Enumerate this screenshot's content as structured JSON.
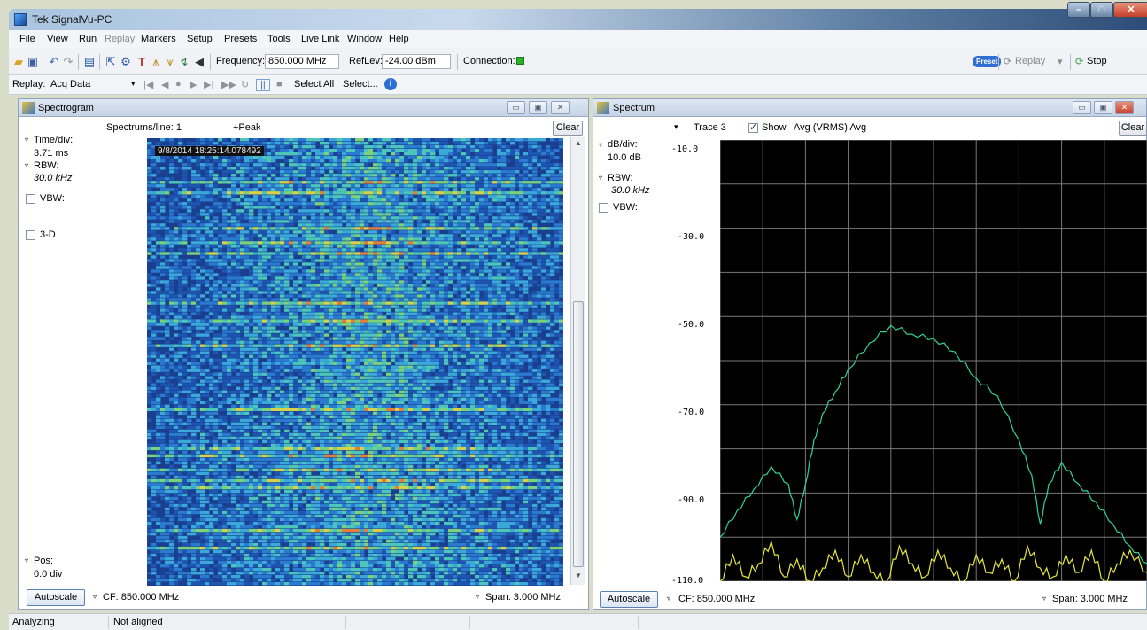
{
  "window": {
    "title": "Tek SignalVu-PC"
  },
  "menu": [
    "File",
    "View",
    "Run",
    "Replay",
    "Markers",
    "Setup",
    "Presets",
    "Tools",
    "Live Link",
    "Window",
    "Help"
  ],
  "toolbar": {
    "frequency_label": "Frequency:",
    "frequency_value": "850.000 MHz",
    "reflev_label": "RefLev:",
    "reflev_value": "-24.00 dBm",
    "connection_label": "Connection:",
    "preset_label": "Preset",
    "replay_label": "Replay",
    "stop_label": "Stop",
    "connection_color": "#2bb02b"
  },
  "replay_bar": {
    "label": "Replay:",
    "source": "Acq Data",
    "select_all": "Select All",
    "select_more": "Select..."
  },
  "spectrogram": {
    "title": "Spectrogram",
    "spectrums_per_line": "Spectrums/line: 1",
    "detection": "+Peak",
    "clear": "Clear",
    "time_div_label": "Time/div:",
    "time_div_value": "3.71 ms",
    "rbw_label": "RBW:",
    "rbw_value": "30.0 kHz",
    "vbw_label": "VBW:",
    "three_d_label": "3-D",
    "pos_label": "Pos:",
    "pos_value": "0.0 div",
    "timestamp": "9/8/2014 18:25:14.078492",
    "autoscale": "Autoscale",
    "cf": "CF: 850.000 MHz",
    "span": "Span: 3.000 MHz"
  },
  "spectrum": {
    "title": "Spectrum",
    "trace": "Trace 3",
    "show_label": "Show",
    "show_checked": true,
    "trace_mode": "Avg (VRMS) Avg",
    "clear": "Clear",
    "db_div_label": "dB/div:",
    "db_div_value": "10.0 dB",
    "rbw_label": "RBW:",
    "rbw_value": "30.0 kHz",
    "vbw_label": "VBW:",
    "autoscale": "Autoscale",
    "cf": "CF: 850.000 MHz",
    "span": "Span: 3.000 MHz",
    "y_tick_labels": [
      "-10.0",
      "-30.0",
      "-50.0",
      "-70.0",
      "-90.0",
      "-110.0"
    ]
  },
  "chart_data": {
    "type": "line",
    "ylim": [
      -110,
      -10
    ],
    "y_ticks": [
      -10,
      -20,
      -30,
      -40,
      -50,
      -60,
      -70,
      -80,
      -90,
      -100,
      -110
    ],
    "series": [
      {
        "color": "#2fd29a",
        "x": [
          0,
          4,
          8,
          12,
          16,
          18,
          20,
          22,
          24,
          27,
          30,
          35,
          40,
          45,
          50,
          55,
          60,
          65,
          70,
          73,
          75,
          77,
          80,
          84,
          88,
          92,
          96,
          100
        ],
        "y": [
          -100,
          -94,
          -89,
          -84,
          -88,
          -96,
          -88,
          -78,
          -72,
          -67,
          -62,
          -56,
          -52,
          -54,
          -55,
          -58,
          -64,
          -68,
          -78,
          -86,
          -97,
          -88,
          -83,
          -88,
          -92,
          -97,
          -102,
          -106
        ]
      },
      {
        "color": "#e6e63a",
        "x": [
          0,
          3,
          6,
          9,
          12,
          15,
          18,
          21,
          24,
          27,
          30,
          33,
          36,
          39,
          42,
          45,
          48,
          51,
          54,
          57,
          60,
          63,
          66,
          69,
          72,
          75,
          78,
          81,
          84,
          87,
          90,
          93,
          96,
          100
        ],
        "y": [
          -110,
          -104,
          -109,
          -106,
          -101,
          -109,
          -105,
          -110,
          -107,
          -103,
          -109,
          -104,
          -108,
          -110,
          -102,
          -106,
          -109,
          -103,
          -107,
          -110,
          -104,
          -108,
          -105,
          -110,
          -102,
          -107,
          -109,
          -104,
          -108,
          -103,
          -110,
          -106,
          -103,
          -108
        ]
      }
    ]
  }
}
